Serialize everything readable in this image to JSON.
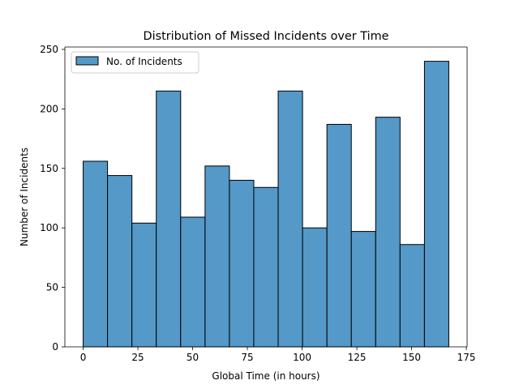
{
  "chart_data": {
    "type": "bar",
    "title": "Distribution of Missed Incidents over Time",
    "xlabel": "Global Time (in hours)",
    "ylabel": "Number of Incidents",
    "xlim": [
      -8.35,
      175.35
    ],
    "ylim": [
      0,
      252
    ],
    "xticks": [
      0,
      25,
      50,
      75,
      100,
      125,
      150,
      175
    ],
    "yticks": [
      0,
      50,
      100,
      150,
      200,
      250
    ],
    "bin_edges": [
      0,
      11.13,
      22.27,
      33.4,
      44.53,
      55.67,
      66.8,
      77.93,
      89.07,
      100.2,
      111.33,
      122.47,
      133.6,
      144.73,
      155.87,
      167
    ],
    "series": [
      {
        "name": "No. of Incidents",
        "values": [
          156,
          144,
          104,
          215,
          109,
          152,
          140,
          134,
          215,
          100,
          187,
          97,
          193,
          86,
          240
        ]
      }
    ],
    "legend_position": "upper left",
    "grid": false,
    "bar_color": "#5499c7",
    "edge_color": "#000000"
  }
}
